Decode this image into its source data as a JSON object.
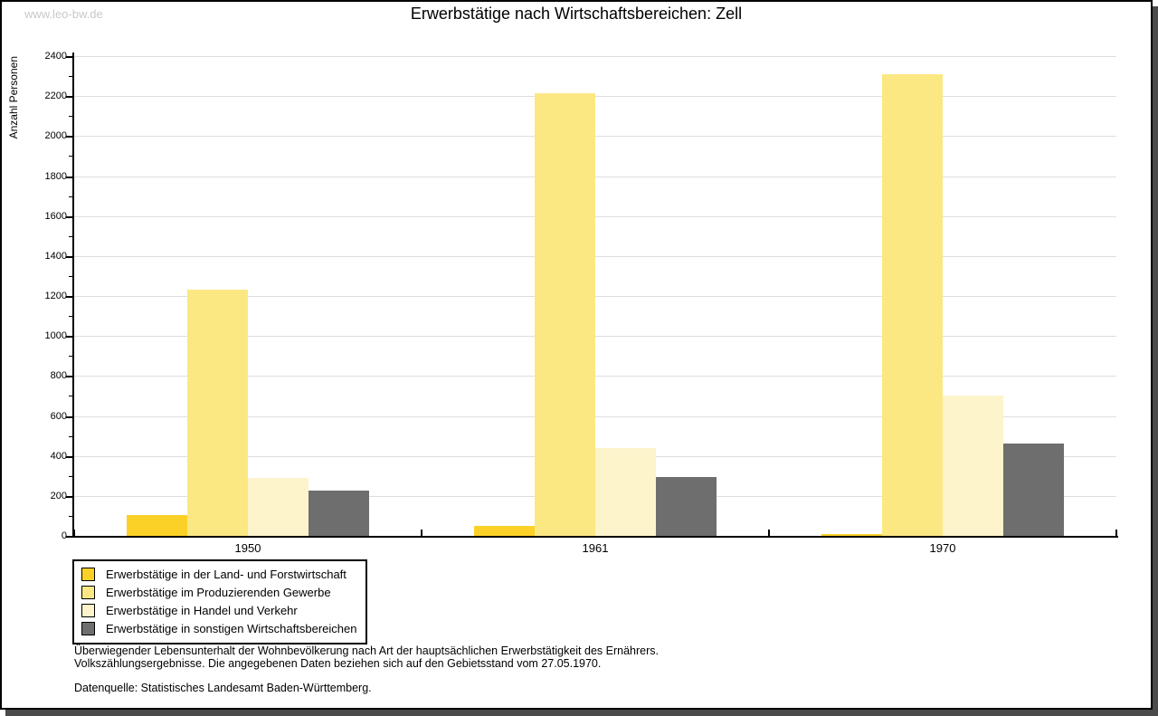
{
  "watermark": "www.leo-bw.de",
  "header": {
    "title": "Erwerbstätige nach Wirtschaftsbereichen: Zell"
  },
  "chart_data": {
    "type": "bar",
    "title": "Erwerbstätige nach Wirtschaftsbereichen: Zell",
    "categories": [
      "1950",
      "1961",
      "1970"
    ],
    "series": [
      {
        "name": "Erwerbstätige in der Land- und Forstwirtschaft",
        "color": "#fbd128",
        "values": [
          110,
          55,
          12
        ]
      },
      {
        "name": "Erwerbstätige im Produzierenden Gewerbe",
        "color": "#fce883",
        "values": [
          1238,
          2220,
          2315
        ]
      },
      {
        "name": "Erwerbstätige in Handel und Verkehr",
        "color": "#fdf4cc",
        "values": [
          293,
          445,
          705
        ]
      },
      {
        "name": "Erwerbstätige in sonstigen Wirtschaftsbereichen",
        "color": "#6e6e6e",
        "values": [
          230,
          300,
          465
        ]
      }
    ],
    "xlabel": "",
    "ylabel": "Anzahl Personen",
    "ylim": [
      0,
      2400
    ],
    "ytick_step": 200,
    "ytick_minor_step": 100,
    "grid": true,
    "gridline_color": "#dedede",
    "legend_position": "bottom-left"
  },
  "footnotes": {
    "line1": "Überwiegender Lebensunterhalt der Wohnbevölkerung nach Art der hauptsächlichen Erwerbstätigkeit des Ernährers.",
    "line2": "Volkszählungsergebnisse. Die angegebenen Daten beziehen sich auf den Gebietsstand vom 27.05.1970.",
    "source": "Datenquelle: Statistisches Landesamt Baden-Württemberg."
  }
}
